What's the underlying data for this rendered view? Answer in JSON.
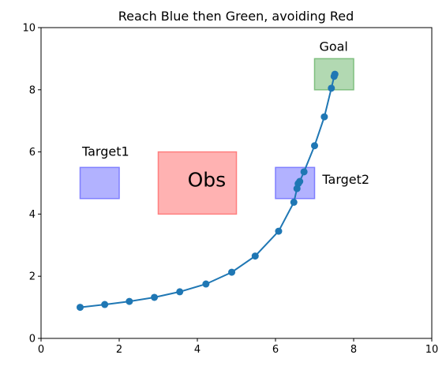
{
  "chart_data": {
    "type": "line",
    "title": "Reach Blue then Green, avoiding Red",
    "xlabel": "",
    "ylabel": "",
    "xlim": [
      0,
      10
    ],
    "ylim": [
      0,
      10
    ],
    "xticks": [
      "0",
      "2",
      "4",
      "6",
      "8",
      "10"
    ],
    "yticks": [
      "0",
      "2",
      "4",
      "6",
      "8",
      "10"
    ],
    "grid": false,
    "series_color": "#1f77b4",
    "trajectory": {
      "x": [
        1.0,
        1.63,
        2.26,
        2.9,
        3.55,
        4.22,
        4.88,
        5.48,
        6.08,
        6.47,
        6.55,
        6.58,
        6.62,
        6.73,
        7.0,
        7.25,
        7.43,
        7.5,
        7.52
      ],
      "y": [
        1.0,
        1.09,
        1.19,
        1.32,
        1.5,
        1.75,
        2.13,
        2.65,
        3.45,
        4.38,
        4.82,
        4.98,
        5.05,
        5.36,
        6.2,
        7.13,
        8.05,
        8.43,
        8.5
      ]
    },
    "regions": [
      {
        "label": "Target1",
        "x": [
          1.0,
          2.0
        ],
        "y": [
          4.5,
          5.5
        ],
        "color": "#7f7fff",
        "label_pos": [
          1.05,
          5.88
        ],
        "label_size": "medium"
      },
      {
        "label": "Obs",
        "x": [
          3.0,
          5.0
        ],
        "y": [
          4.0,
          6.0
        ],
        "color": "#ff7f7f",
        "label_pos": [
          3.75,
          4.88
        ],
        "label_size": "large"
      },
      {
        "label": "Target2",
        "x": [
          6.0,
          7.0
        ],
        "y": [
          4.5,
          5.5
        ],
        "color": "#7f7fff",
        "label_pos": [
          7.2,
          4.97
        ],
        "label_size": "medium"
      },
      {
        "label": "Goal",
        "x": [
          7.0,
          8.0
        ],
        "y": [
          8.0,
          9.0
        ],
        "color": "#7fbf7f",
        "label_pos": [
          7.12,
          9.25
        ],
        "label_size": "medium"
      }
    ]
  }
}
